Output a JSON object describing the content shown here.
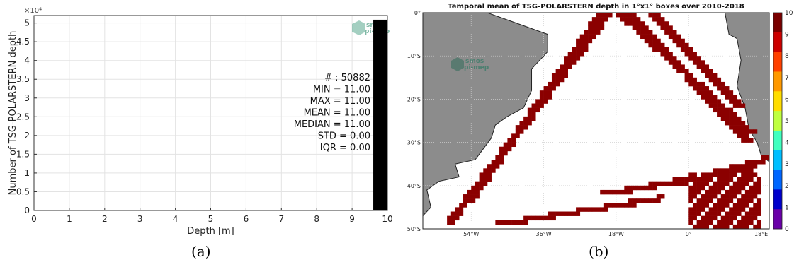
{
  "captions": {
    "a": "(a)",
    "b": "(b)"
  },
  "logo": {
    "line1": "smos",
    "line2": "pi-mep"
  },
  "chart_data": [
    {
      "type": "bar",
      "panel": "a",
      "xlabel": "Depth [m]",
      "ylabel": "Number of TSG-POLARSTERN depth",
      "exponent_label": "×10⁴",
      "xlim": [
        0,
        10
      ],
      "ylim": [
        0,
        5.2
      ],
      "x_ticks": [
        "0",
        "1",
        "2",
        "3",
        "4",
        "5",
        "6",
        "7",
        "8",
        "9",
        "10"
      ],
      "y_ticks": [
        "0",
        "0.5",
        "1",
        "1.5",
        "2",
        "2.5",
        "3",
        "3.5",
        "4",
        "4.5",
        "5"
      ],
      "grid": true,
      "bars": [
        {
          "x0": 9.6,
          "x1": 10,
          "value": 5.0882
        }
      ],
      "stats": [
        "# : 50882",
        "MIN = 11.00",
        "MAX =  11.00",
        "MEAN = 11.00",
        "MEDIAN = 11.00",
        "STD = 0.00",
        "IQR = 0.00"
      ]
    },
    {
      "type": "heatmap",
      "panel": "b",
      "title": "Temporal mean of TSG-POLARSTERN depth in 1°x1° boxes over 2010-2018",
      "lon_range": [
        -66,
        20
      ],
      "lat_range": [
        -50,
        0
      ],
      "x_ticks": [
        {
          "lon": -54,
          "label": "54°W"
        },
        {
          "lon": -36,
          "label": "36°W"
        },
        {
          "lon": -18,
          "label": "18°W"
        },
        {
          "lon": 0,
          "label": "0°"
        },
        {
          "lon": 18,
          "label": "18°E"
        }
      ],
      "y_ticks": [
        {
          "lat": 0,
          "label": "0°"
        },
        {
          "lat": -10,
          "label": "10°S"
        },
        {
          "lat": -20,
          "label": "20°S"
        },
        {
          "lat": -30,
          "label": "30°S"
        },
        {
          "lat": -40,
          "label": "40°S"
        },
        {
          "lat": -50,
          "label": "50°S"
        }
      ],
      "colorbar": {
        "min": 0,
        "max": 10,
        "ticks": [
          "0",
          "1",
          "2",
          "3",
          "4",
          "5",
          "6",
          "7",
          "8",
          "9",
          "10"
        ]
      },
      "cell_color": "#8b0000",
      "land_color": "#8c8c8c",
      "cruise_tracks": [
        {
          "from": [
            -60,
            -49
          ],
          "to": [
            -20,
            0
          ]
        },
        {
          "from": [
            -55,
            -44
          ],
          "to": [
            -22,
            0
          ]
        },
        {
          "from": [
            -15,
            0
          ],
          "to": [
            14,
            -30
          ]
        },
        {
          "from": [
            -10,
            0
          ],
          "to": [
            12,
            -22
          ]
        },
        {
          "from": [
            -18,
            0
          ],
          "to": [
            15,
            -28
          ]
        },
        {
          "from": [
            -48,
            -49
          ],
          "to": [
            -8,
            -43
          ]
        },
        {
          "from": [
            -22,
            -42
          ],
          "to": [
            15,
            -36
          ]
        },
        {
          "from": [
            -5,
            -40
          ],
          "to": [
            18,
            -34
          ]
        }
      ],
      "cell_blocks": [
        {
          "lon": [
            0,
            18
          ],
          "lat": [
            -50,
            -37
          ]
        }
      ]
    }
  ]
}
